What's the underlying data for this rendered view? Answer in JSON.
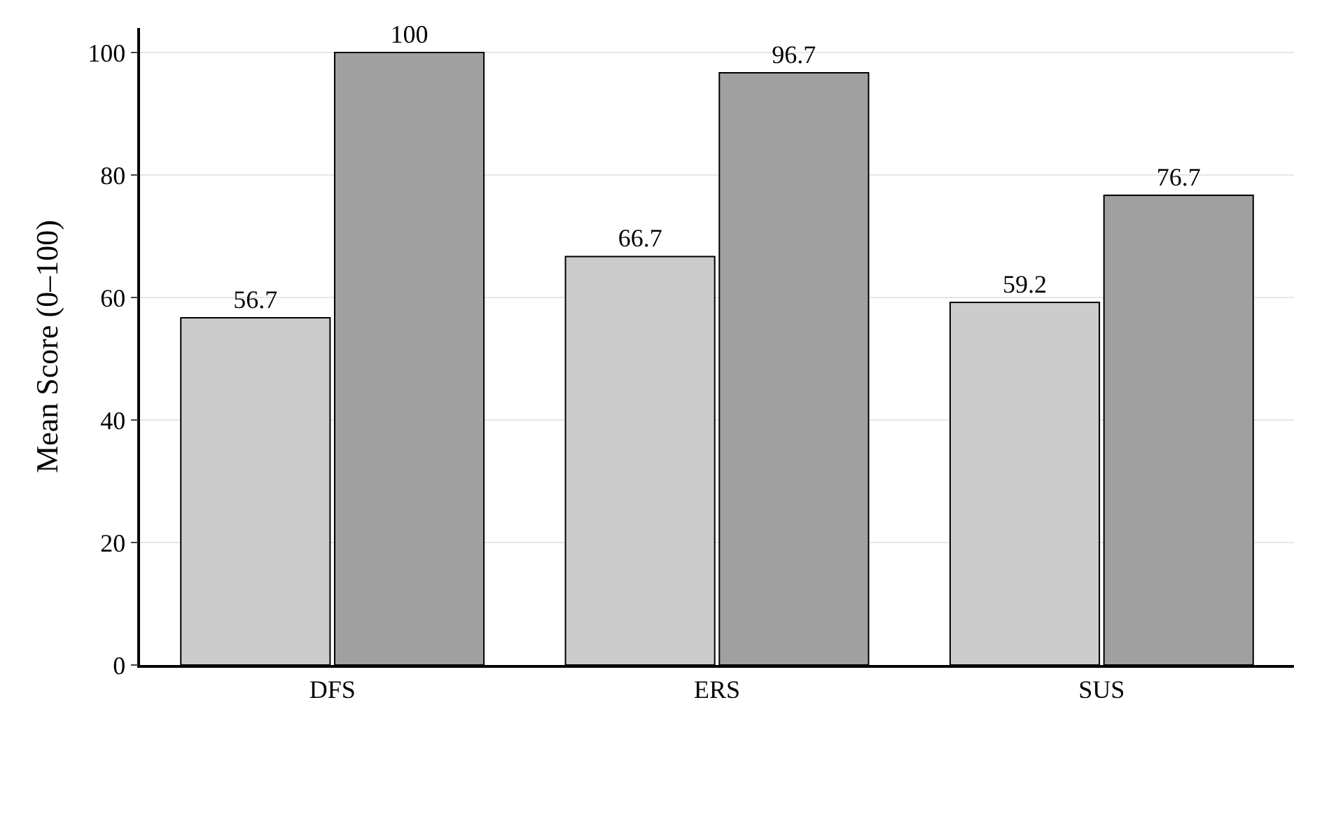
{
  "chart_data": {
    "type": "bar",
    "ylabel": "Mean Score (0–100)",
    "categories": [
      "DFS",
      "ERS",
      "SUS"
    ],
    "series": [
      {
        "color": "#cccccc",
        "values": [
          56.7,
          66.7,
          59.2
        ]
      },
      {
        "color": "#a0a0a0",
        "values": [
          100,
          96.7,
          76.7
        ]
      }
    ],
    "ylim": [
      0,
      104
    ],
    "yticks": [
      0,
      20,
      40,
      60,
      80,
      100
    ],
    "grid": "y",
    "data_labels": true
  }
}
